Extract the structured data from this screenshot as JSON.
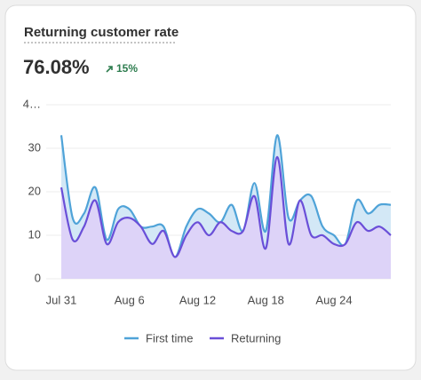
{
  "header": {
    "title": "Returning customer rate",
    "value": "76.08%",
    "change": "15%"
  },
  "chart_data": {
    "type": "area",
    "categories": [
      "Jul 31",
      null,
      null,
      null,
      null,
      null,
      "Aug 6",
      null,
      null,
      null,
      null,
      null,
      "Aug 12",
      null,
      null,
      null,
      null,
      null,
      "Aug 18",
      null,
      null,
      null,
      null,
      null,
      "Aug 24",
      null,
      null,
      null,
      null,
      null
    ],
    "series": [
      {
        "name": "First time",
        "color": "#4fa3d8",
        "fill": "#d3e8f6",
        "values": [
          33,
          14,
          15,
          21,
          9,
          16,
          16,
          12,
          12,
          12,
          5,
          12,
          16,
          15,
          13,
          17,
          11,
          22,
          11,
          33,
          14,
          18,
          19,
          12,
          10,
          8,
          18,
          15,
          17,
          17
        ]
      },
      {
        "name": "Returning",
        "color": "#6a4fd8",
        "fill": "#ddd3f8",
        "values": [
          21,
          9,
          12,
          18,
          8,
          13,
          14,
          12,
          8,
          11,
          5,
          10,
          13,
          10,
          13,
          11,
          11,
          19,
          7,
          28,
          8,
          18,
          10,
          10,
          8,
          8,
          13,
          11,
          12,
          10
        ]
      }
    ],
    "ylim": [
      0,
      40
    ],
    "yticks": [
      0,
      10,
      20,
      30,
      {
        "value": 40,
        "label": "4…"
      }
    ],
    "grid": true
  }
}
